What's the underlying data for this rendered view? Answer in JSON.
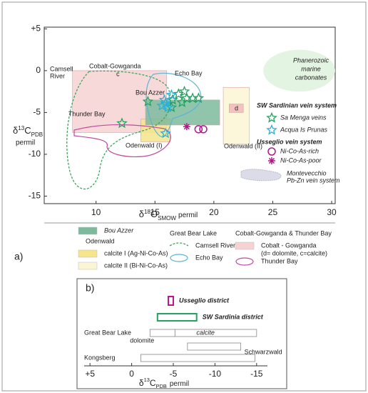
{
  "chart_data": [
    {
      "type": "scatter",
      "panel_label": "a)",
      "x_label": {
        "delta": "δ",
        "sup": "18",
        "letter": "O",
        "sub": "SMOW",
        "unit": "permil"
      },
      "y_label": {
        "delta": "δ",
        "sup": "13",
        "letter": "C",
        "sub": "PDB",
        "unit": "permil"
      },
      "xlim": [
        5.6,
        30.3
      ],
      "xticks": [
        10,
        15,
        20,
        25,
        30
      ],
      "ylim": [
        -15.9,
        5.2
      ],
      "yticks": [
        {
          "value": 5,
          "label": "+5"
        },
        0,
        -5,
        -10,
        -15
      ],
      "regions": [
        {
          "shape": "ellipse",
          "color": "#e4f4e2",
          "x": [
            24.2,
            30.3
          ],
          "y": [
            2.5,
            -2.5
          ]
        },
        {
          "shape": "rect",
          "color": "#f7d2d2",
          "x": [
            8,
            16
          ],
          "y": [
            0,
            -7.4
          ]
        },
        {
          "shape": "rect",
          "color": "#fcf5d3",
          "x": [
            20.8,
            23
          ],
          "y": [
            -2,
            -8.8
          ]
        },
        {
          "shape": "rect",
          "color": "#f6e58a",
          "x": [
            13.8,
            16.3
          ],
          "y": [
            -5.8,
            -8.5
          ]
        },
        {
          "shape": "rect",
          "color": "#7dba9c",
          "x": [
            14.2,
            20.5
          ],
          "y": [
            -3.5,
            -6.5
          ]
        },
        {
          "shape": "rect",
          "color": "#f2b9b9",
          "x": [
            21.3,
            22.5
          ],
          "y": [
            -4.0,
            -5.0
          ]
        }
      ],
      "annotations": [
        "Cobalt-Gowganda",
        "c",
        "Camsell",
        "River",
        "Echo Bay",
        "Bou Azzer",
        "Thunder Bay",
        "Odenwald (I)",
        "Odenwald (II)",
        "d",
        "Phanerozoic",
        "marine",
        "carbonates"
      ],
      "legend_headings": [
        "SW Sardinian vein system",
        "Usseglio vein system"
      ],
      "legend_extra": [
        "Montevecchio",
        "Pb-Zn vein system"
      ],
      "series": [
        {
          "name": "Sa Menga veins",
          "color": "#23a35f",
          "marker": "star",
          "x": [
            12.2,
            14.4,
            17.0,
            17.5,
            17.7,
            17.3,
            18.2,
            18.7,
            16.5,
            16.4
          ],
          "values": [
            -6.3,
            -3.7,
            -2.8,
            -2.5,
            -3.3,
            -3.8,
            -3.3,
            -3.3,
            -3.5,
            -4.4
          ]
        },
        {
          "name": "Acqua Is Prunas",
          "color": "#2bb0d8",
          "marker": "star",
          "x": [
            15.9,
            15.9,
            16.4,
            15.6,
            16.1,
            15.8
          ],
          "values": [
            -7.5,
            -3.9,
            -2.9,
            -4.2,
            -4.4,
            -3.5
          ]
        },
        {
          "name": "Ni-Co-As-rich",
          "color": "#b5178a",
          "marker": "circle",
          "x": [
            18.7,
            19.1
          ],
          "values": [
            -7.0,
            -7.0
          ]
        },
        {
          "name": "Ni-Co-As-poor",
          "color": "#b5178a",
          "marker": "asterisk",
          "x": [
            17.7
          ],
          "values": [
            -6.7
          ]
        }
      ],
      "key_groups": [
        {
          "items": [
            {
              "label": [
                "Bou Azzer"
              ],
              "color": "#7dba9c",
              "symbol": "rect"
            }
          ]
        },
        {
          "title": "Odenwald",
          "items": [
            {
              "label": [
                "calcite I (Ag-Ni-Co-As)"
              ],
              "color": "#f6e58a",
              "symbol": "rect"
            },
            {
              "label": [
                "calcite II (Bi-Ni-Co-As)"
              ],
              "color": "#fcf5d3",
              "symbol": "rect"
            }
          ]
        },
        {
          "title": "Great Bear Lake",
          "items": [
            {
              "label": [
                "Camsell River"
              ],
              "color": "#3aa65c",
              "symbol": "dashed"
            },
            {
              "label": [
                "Echo Bay"
              ],
              "color": "#5ab4d8",
              "symbol": "loop"
            }
          ]
        },
        {
          "title": "Cobalt-Gowganda & Thunder Bay",
          "items": [
            {
              "label": [
                "Cobalt - Gowganda",
                "(d= dolomite, c=calcite)"
              ],
              "color": "#f7d2d2",
              "symbol": "rect"
            },
            {
              "label": [
                "Thunder Bay"
              ],
              "color": "#c04aa0",
              "symbol": "loop"
            }
          ]
        }
      ]
    },
    {
      "type": "range_bar",
      "panel_label": "b)",
      "x_label": {
        "delta": "δ",
        "sup": "13",
        "letter": "C",
        "sub": "PDB",
        "unit": "permil"
      },
      "xlim": [
        5.7,
        -16.3
      ],
      "xticks": [
        {
          "value": 5,
          "label": "+5"
        },
        0,
        -5,
        -10,
        -15
      ],
      "rows": [
        {
          "label": "Usseglio district",
          "color": "#c0158a",
          "values": [
            -4.4,
            -5.0
          ]
        },
        {
          "label": "SW Sardinia district",
          "color": "#23a35f",
          "values": [
            -3.1,
            -7.8
          ]
        },
        {
          "label": "Great Bear Lake",
          "color": "#888888",
          "segments": [
            {
              "label": "dolomite",
              "values": [
                -2.2,
                -5.2
              ]
            },
            {
              "label": "calcite",
              "values": [
                -5.2,
                -15.0
              ]
            }
          ]
        },
        {
          "label": "Schwarzwald",
          "color": "#888888",
          "values": [
            -6.7,
            -13.1
          ]
        },
        {
          "label": "Kongsberg",
          "color": "#888888",
          "values": [
            -1.1,
            -14.8
          ]
        }
      ]
    }
  ]
}
